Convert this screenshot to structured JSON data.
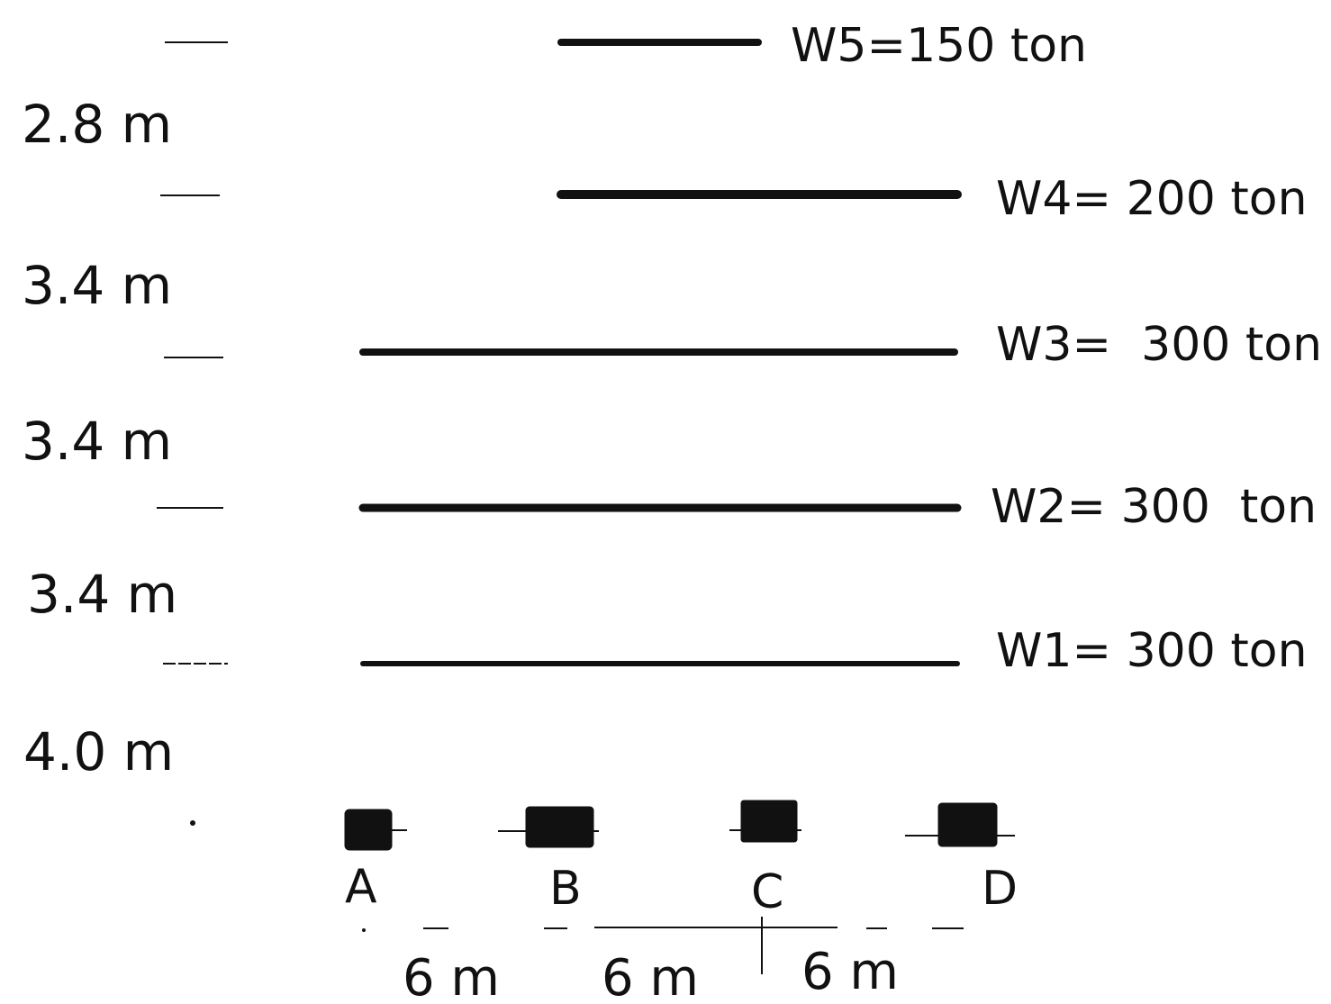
{
  "floors": [
    {
      "weight_label": "W5=150 ton",
      "bay_from": 1,
      "bay_to": 2
    },
    {
      "weight_label": "W4= 200 ton",
      "bay_from": 1,
      "bay_to": 3
    },
    {
      "weight_label": "W3=  300 ton",
      "bay_from": 0,
      "bay_to": 3
    },
    {
      "weight_label": "W2= 300  ton",
      "bay_from": 0,
      "bay_to": 3
    },
    {
      "weight_label": "W1= 300 ton",
      "bay_from": 0,
      "bay_to": 3
    }
  ],
  "story_heights": [
    "2.8 m",
    "3.4 m",
    "3.4 m",
    "3.4 m",
    "4.0 m"
  ],
  "columns": [
    "A",
    "B",
    "C",
    "D"
  ],
  "bay_spans": [
    "6 m",
    "6 m",
    "6 m"
  ],
  "colors": {
    "line": "#111111",
    "background": "#ffffff"
  }
}
